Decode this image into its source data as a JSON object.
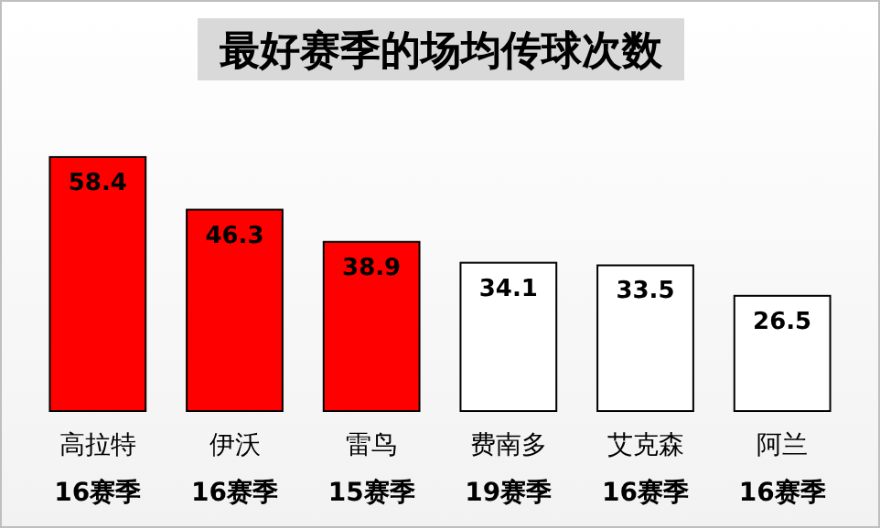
{
  "chart_data": {
    "type": "bar",
    "title": "最好赛季的场均传球次数",
    "categories": [
      "高拉特\n16赛季",
      "伊沃\n16赛季",
      "雷鸟\n15赛季",
      "费南多\n19赛季",
      "艾克森\n16赛季",
      "阿兰\n16赛季"
    ],
    "values": [
      58.4,
      46.3,
      38.9,
      34.1,
      33.5,
      26.5
    ],
    "colors": [
      "#ff0000",
      "#ff0000",
      "#ff0000",
      "#ffffff",
      "#ffffff",
      "#ffffff"
    ],
    "data_labels": true
  }
}
